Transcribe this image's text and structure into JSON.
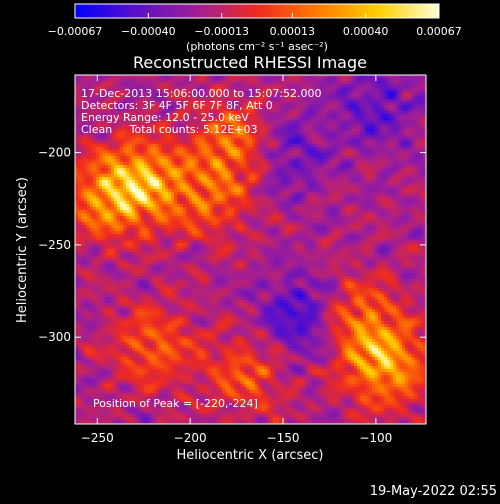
{
  "chart_data": {
    "type": "heatmap",
    "title": "Reconstructed RHESSI Image",
    "xlabel": "Heliocentric X (arcsec)",
    "ylabel": "Heliocentric Y (arcsec)",
    "xlim": [
      -262,
      -73
    ],
    "ylim": [
      -347,
      -158
    ],
    "x_ticks": [
      -250,
      -200,
      -150,
      -100
    ],
    "y_ticks": [
      -200,
      -250,
      -300
    ],
    "x_tick_labels": [
      "−250",
      "−200",
      "−150",
      "−100"
    ],
    "y_tick_labels": [
      "−200",
      "−250",
      "−300"
    ],
    "colorbar": {
      "range": [
        -0.00067,
        0.00067
      ],
      "ticks": [
        -0.00067,
        -0.0004,
        -0.00013,
        0.00013,
        0.0004,
        0.00067
      ],
      "tick_labels": [
        "−0.00067",
        "−0.00040",
        "−0.00013",
        "0.00013",
        "0.00040",
        "0.00067"
      ],
      "unit_label": "(photons cm⁻² s⁻¹ asec⁻²)",
      "colors": [
        "#0000ff",
        "#5a10c8",
        "#a01e96",
        "#ee2a20",
        "#ff7a00",
        "#ffd000",
        "#ffffd8"
      ]
    },
    "annotations": {
      "line1": "17-Dec-2013 15:06:00.000 to 15:07:52.000",
      "line2": "Detectors: 3F 4F 5F 6F 7F 8F, Att 0",
      "line3": "Energy Range: 12.0 - 25.0 keV",
      "line4": "Clean     Total counts: 5.12E+03",
      "peak": "Position of Peak = [-220,-224]"
    },
    "bright_regions": [
      {
        "x": -225,
        "y": -215,
        "level": 0.85
      },
      {
        "x": -245,
        "y": -225,
        "level": 0.7
      },
      {
        "x": -175,
        "y": -195,
        "level": 0.7
      },
      {
        "x": -190,
        "y": -225,
        "level": 0.5
      },
      {
        "x": -95,
        "y": -315,
        "level": 0.9
      },
      {
        "x": -110,
        "y": -290,
        "level": 0.6
      },
      {
        "x": -220,
        "y": -305,
        "level": 0.55
      },
      {
        "x": -170,
        "y": -320,
        "level": 0.5
      }
    ],
    "dim_regions": [
      {
        "x": -140,
        "y": -290,
        "level": -0.6
      },
      {
        "x": -150,
        "y": -200,
        "level": -0.45
      },
      {
        "x": -100,
        "y": -175,
        "level": -0.4
      }
    ]
  },
  "footer": {
    "timestamp": "19-May-2022 02:55"
  }
}
